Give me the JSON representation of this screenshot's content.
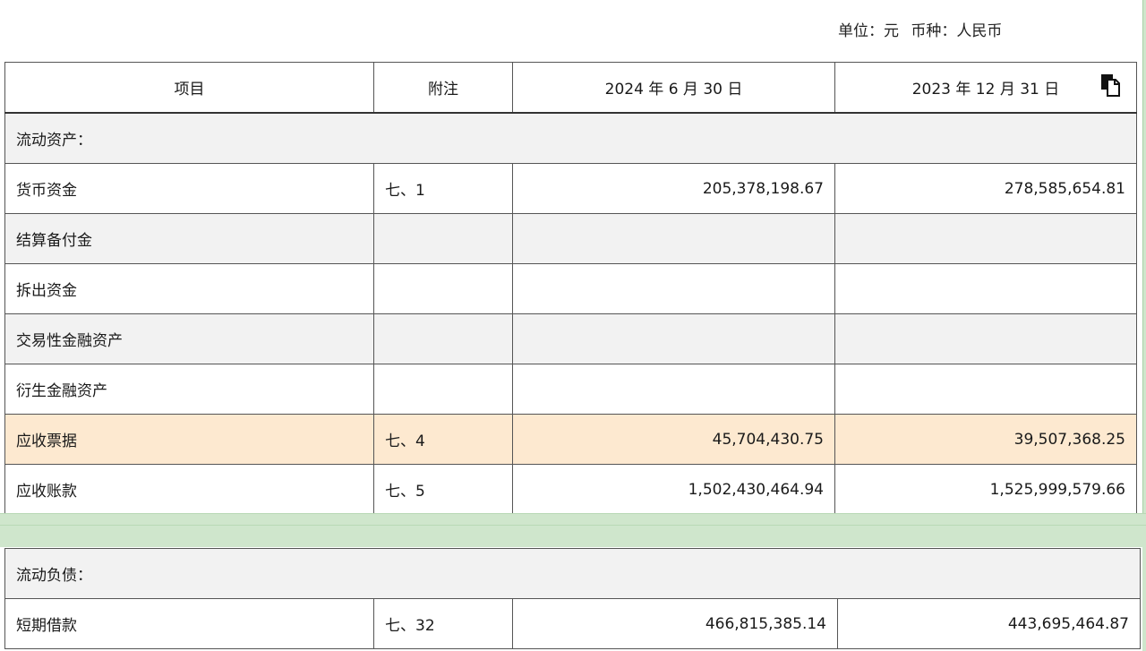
{
  "unit": {
    "label": "单位：元",
    "currency": "币种：人民币"
  },
  "table_top": {
    "headers": [
      "项目",
      "附注",
      "2024 年 6 月 30 日",
      "2023 年 12 月 31 日"
    ],
    "section": "流动资产：",
    "rows": [
      {
        "item": "货币资金",
        "note": "七、1",
        "current": "205,378,198.67",
        "previous": "278,585,654.81"
      },
      {
        "item": "结算备付金",
        "note": "",
        "current": "",
        "previous": ""
      },
      {
        "item": "拆出资金",
        "note": "",
        "current": "",
        "previous": ""
      },
      {
        "item": "交易性金融资产",
        "note": "",
        "current": "",
        "previous": ""
      },
      {
        "item": "衍生金融资产",
        "note": "",
        "current": "",
        "previous": ""
      },
      {
        "item": "应收票据",
        "note": "七、4",
        "current": "45,704,430.75",
        "previous": "39,507,368.25"
      },
      {
        "item": "应收账款",
        "note": "七、5",
        "current": "1,502,430,464.94",
        "previous": "1,525,999,579.66"
      }
    ]
  },
  "table_bottom": {
    "section": "流动负债：",
    "rows": [
      {
        "item": "短期借款",
        "note": "七、32",
        "current": "466,815,385.14",
        "previous": "443,695,464.87"
      }
    ]
  },
  "icons": {
    "copy": "copy-icon"
  },
  "colors": {
    "highlight_row": "#fde9d0",
    "grey_row": "#f2f2f2",
    "background_band": "#cfe6cc"
  }
}
